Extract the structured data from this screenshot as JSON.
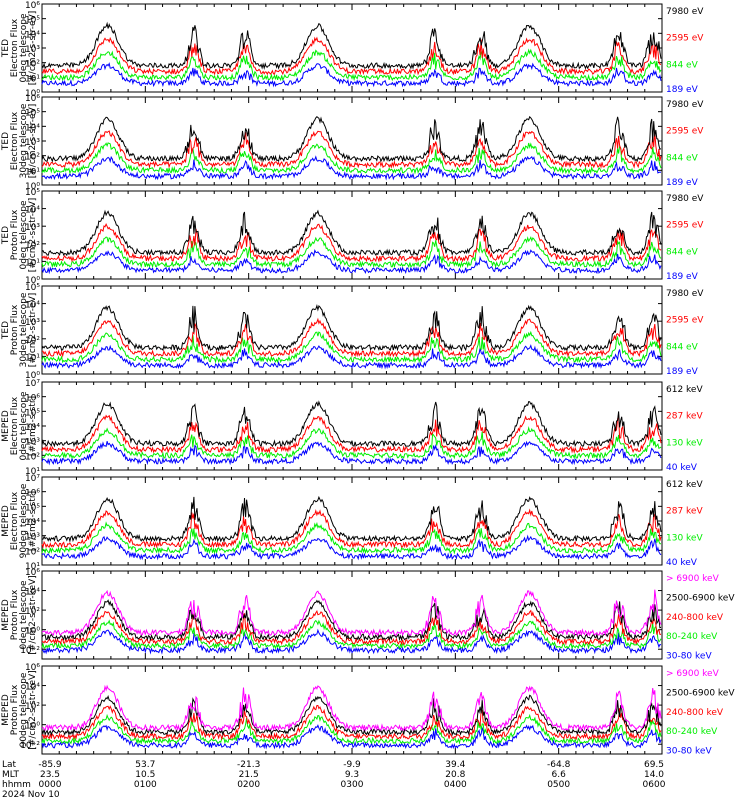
{
  "colors": {
    "black": "#000000",
    "red": "#ff0000",
    "green": "#00ee00",
    "blue": "#0000ff",
    "magenta": "#ff00ff"
  },
  "chart_data": {
    "type": "line",
    "date_label": "2024 Nov 10",
    "footer": {
      "row_labels": [
        "Lat",
        "MLT",
        "hhmm"
      ],
      "columns": [
        {
          "lat": "-85.9",
          "mlt": "23.5",
          "hhmm": "0000"
        },
        {
          "lat": "53.7",
          "mlt": "10.5",
          "hhmm": "0100"
        },
        {
          "lat": "-21.3",
          "mlt": "21.5",
          "hhmm": "0200"
        },
        {
          "lat": "-9.9",
          "mlt": "9.3",
          "hhmm": "0300"
        },
        {
          "lat": "39.4",
          "mlt": "20.8",
          "hhmm": "0400"
        },
        {
          "lat": "-64.8",
          "mlt": "6.6",
          "hhmm": "0500"
        },
        {
          "lat": "69.5",
          "mlt": "14.0",
          "hhmm": "0600"
        }
      ]
    },
    "panels": [
      {
        "ylabel": [
          "TED",
          "Electron Flux",
          "0deg telescope",
          "[#/cm2-s-str-eV]"
        ],
        "ylog": [
          0,
          6
        ],
        "yticks": [
          "10⁰",
          "10¹",
          "10²",
          "10³",
          "10⁴",
          "10⁵",
          "10⁶"
        ],
        "legend": [
          {
            "label": "7980 eV",
            "color": "#000000"
          },
          {
            "label": "2595 eV",
            "color": "#ff0000"
          },
          {
            "label": "844 eV",
            "color": "#00ee00"
          },
          {
            "label": "189 eV",
            "color": "#0000ff"
          }
        ]
      },
      {
        "ylabel": [
          "TED",
          "Electron Flux",
          "30deg telescope",
          "[#/cm2-s-str-eV]"
        ],
        "ylog": [
          0,
          6
        ],
        "yticks": [
          "10⁰",
          "10¹",
          "10²",
          "10³",
          "10⁴",
          "10⁵",
          "10⁶"
        ],
        "legend": [
          {
            "label": "7980 eV",
            "color": "#000000"
          },
          {
            "label": "2595 eV",
            "color": "#ff0000"
          },
          {
            "label": "844 eV",
            "color": "#00ee00"
          },
          {
            "label": "189 eV",
            "color": "#0000ff"
          }
        ]
      },
      {
        "ylabel": [
          "TED",
          "Proton Flux",
          "0deg telescope",
          "[#/cm2-s-str-eV]"
        ],
        "ylog": [
          0,
          5
        ],
        "yticks": [
          "10⁰",
          "10¹",
          "10²",
          "10³",
          "10⁴",
          "10⁵"
        ],
        "legend": [
          {
            "label": "7980 eV",
            "color": "#000000"
          },
          {
            "label": "2595 eV",
            "color": "#ff0000"
          },
          {
            "label": "844 eV",
            "color": "#00ee00"
          },
          {
            "label": "189 eV",
            "color": "#0000ff"
          }
        ]
      },
      {
        "ylabel": [
          "TED",
          "Proton Flux",
          "30deg telescope",
          "[#/cm2-s-str-eV]"
        ],
        "ylog": [
          0,
          5
        ],
        "yticks": [
          "10⁰",
          "10¹",
          "10²",
          "10³",
          "10⁴",
          "10⁵"
        ],
        "legend": [
          {
            "label": "7980 eV",
            "color": "#000000"
          },
          {
            "label": "2595 eV",
            "color": "#ff0000"
          },
          {
            "label": "844 eV",
            "color": "#00ee00"
          },
          {
            "label": "189 eV",
            "color": "#0000ff"
          }
        ]
      },
      {
        "ylabel": [
          "MEPED",
          "Electron Flux",
          "0deg telescope",
          "[#/cm2-s-str]"
        ],
        "ylog": [
          1,
          7
        ],
        "yticks": [
          "10¹",
          "10²",
          "10³",
          "10⁴",
          "10⁵",
          "10⁶",
          "10⁷"
        ],
        "legend": [
          {
            "label": "612 keV",
            "color": "#000000"
          },
          {
            "label": "287 keV",
            "color": "#ff0000"
          },
          {
            "label": "130 keV",
            "color": "#00ee00"
          },
          {
            "label": "40 keV",
            "color": "#0000ff"
          }
        ]
      },
      {
        "ylabel": [
          "MEPED",
          "Electron Flux",
          "90deg telescope",
          "[#/cm2-s-str]"
        ],
        "ylog": [
          1,
          7
        ],
        "yticks": [
          "10¹",
          "10²",
          "10³",
          "10⁴",
          "10⁵",
          "10⁶",
          "10⁷"
        ],
        "legend": [
          {
            "label": "612 keV",
            "color": "#000000"
          },
          {
            "label": "287 keV",
            "color": "#ff0000"
          },
          {
            "label": "130 keV",
            "color": "#00ee00"
          },
          {
            "label": "40 keV",
            "color": "#0000ff"
          }
        ]
      },
      {
        "ylabel": [
          "MEPED",
          "Proton Flux",
          "0deg telescope",
          "[#/cm2-s-str-keV]"
        ],
        "ylog": [
          -3,
          6
        ],
        "yticks": [
          "10⁻²",
          "10⁰",
          "10²",
          "10⁴",
          "10⁶"
        ],
        "ytick_values": [
          -2,
          0,
          2,
          4,
          6
        ],
        "legend": [
          {
            "label": "> 6900 keV",
            "color": "#ff00ff"
          },
          {
            "label": "2500-6900 keV",
            "color": "#000000"
          },
          {
            "label": "240-800 keV",
            "color": "#ff0000"
          },
          {
            "label": "80-240 keV",
            "color": "#00ee00"
          },
          {
            "label": "30-80 keV",
            "color": "#0000ff"
          }
        ]
      },
      {
        "ylabel": [
          "MEPED",
          "Proton Flux",
          "90deg telescope",
          "[#/cm2-s-str-keV]"
        ],
        "ylog": [
          -3,
          6
        ],
        "yticks": [
          "10⁻²",
          "10⁰",
          "10²",
          "10⁴",
          "10⁶"
        ],
        "ytick_values": [
          -2,
          0,
          2,
          4,
          6
        ],
        "legend": [
          {
            "label": "> 6900 keV",
            "color": "#ff00ff"
          },
          {
            "label": "2500-6900 keV",
            "color": "#000000"
          },
          {
            "label": "240-800 keV",
            "color": "#ff0000"
          },
          {
            "label": "80-240 keV",
            "color": "#00ee00"
          },
          {
            "label": "30-80 keV",
            "color": "#0000ff"
          }
        ]
      }
    ]
  }
}
